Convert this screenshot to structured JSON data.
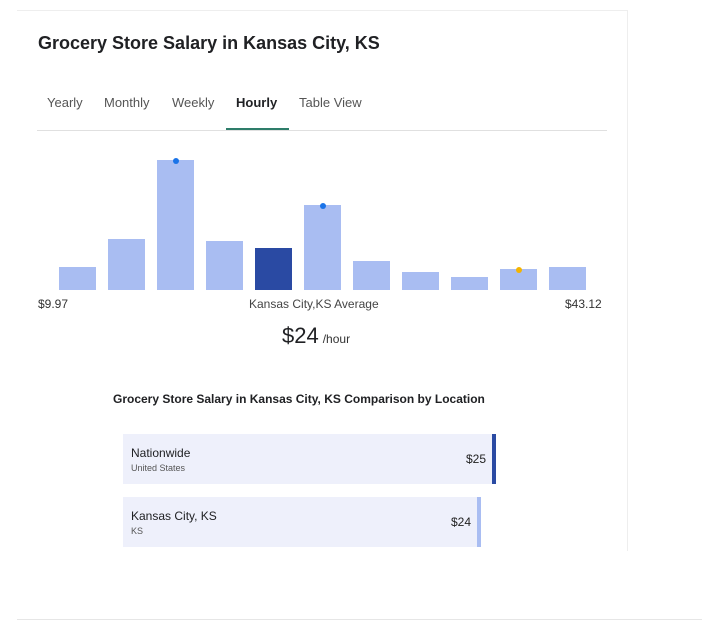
{
  "title": "Grocery Store Salary in Kansas City, KS",
  "tabs": [
    {
      "label": "Yearly",
      "active": false
    },
    {
      "label": "Monthly",
      "active": false
    },
    {
      "label": "Weekly",
      "active": false
    },
    {
      "label": "Hourly",
      "active": true
    },
    {
      "label": "Table View",
      "active": false
    }
  ],
  "chart_data": {
    "type": "bar",
    "description_units": "relative frequency (0-1)",
    "range_min_label": "$9.97",
    "range_max_label": "$43.12",
    "values": [
      0.18,
      0.39,
      1.0,
      0.38,
      0.32,
      0.65,
      0.22,
      0.14,
      0.1,
      0.16,
      0.18
    ],
    "highlight_index": 4,
    "markers": [
      {
        "index": 2,
        "color": "#1a73e8"
      },
      {
        "index": 5,
        "color": "#1a73e8"
      },
      {
        "index": 9,
        "color": "#f4b400"
      }
    ],
    "colors": {
      "bar": "#a9bdf2",
      "highlight": "#2a4aa3"
    }
  },
  "average": {
    "label": "Kansas City,KS Average",
    "amount": "$24",
    "unit": "/hour"
  },
  "comparison": {
    "title": "Grocery Store Salary in Kansas City, KS Comparison by Location",
    "rows": [
      {
        "name": "Nationwide",
        "sub": "United States",
        "value": "$25",
        "share": 1.0,
        "marker_color": "#2a4aa3"
      },
      {
        "name": "Kansas City, KS",
        "sub": "KS",
        "value": "$24",
        "share": 0.96,
        "marker_color": "#a9bdf2"
      }
    ]
  }
}
